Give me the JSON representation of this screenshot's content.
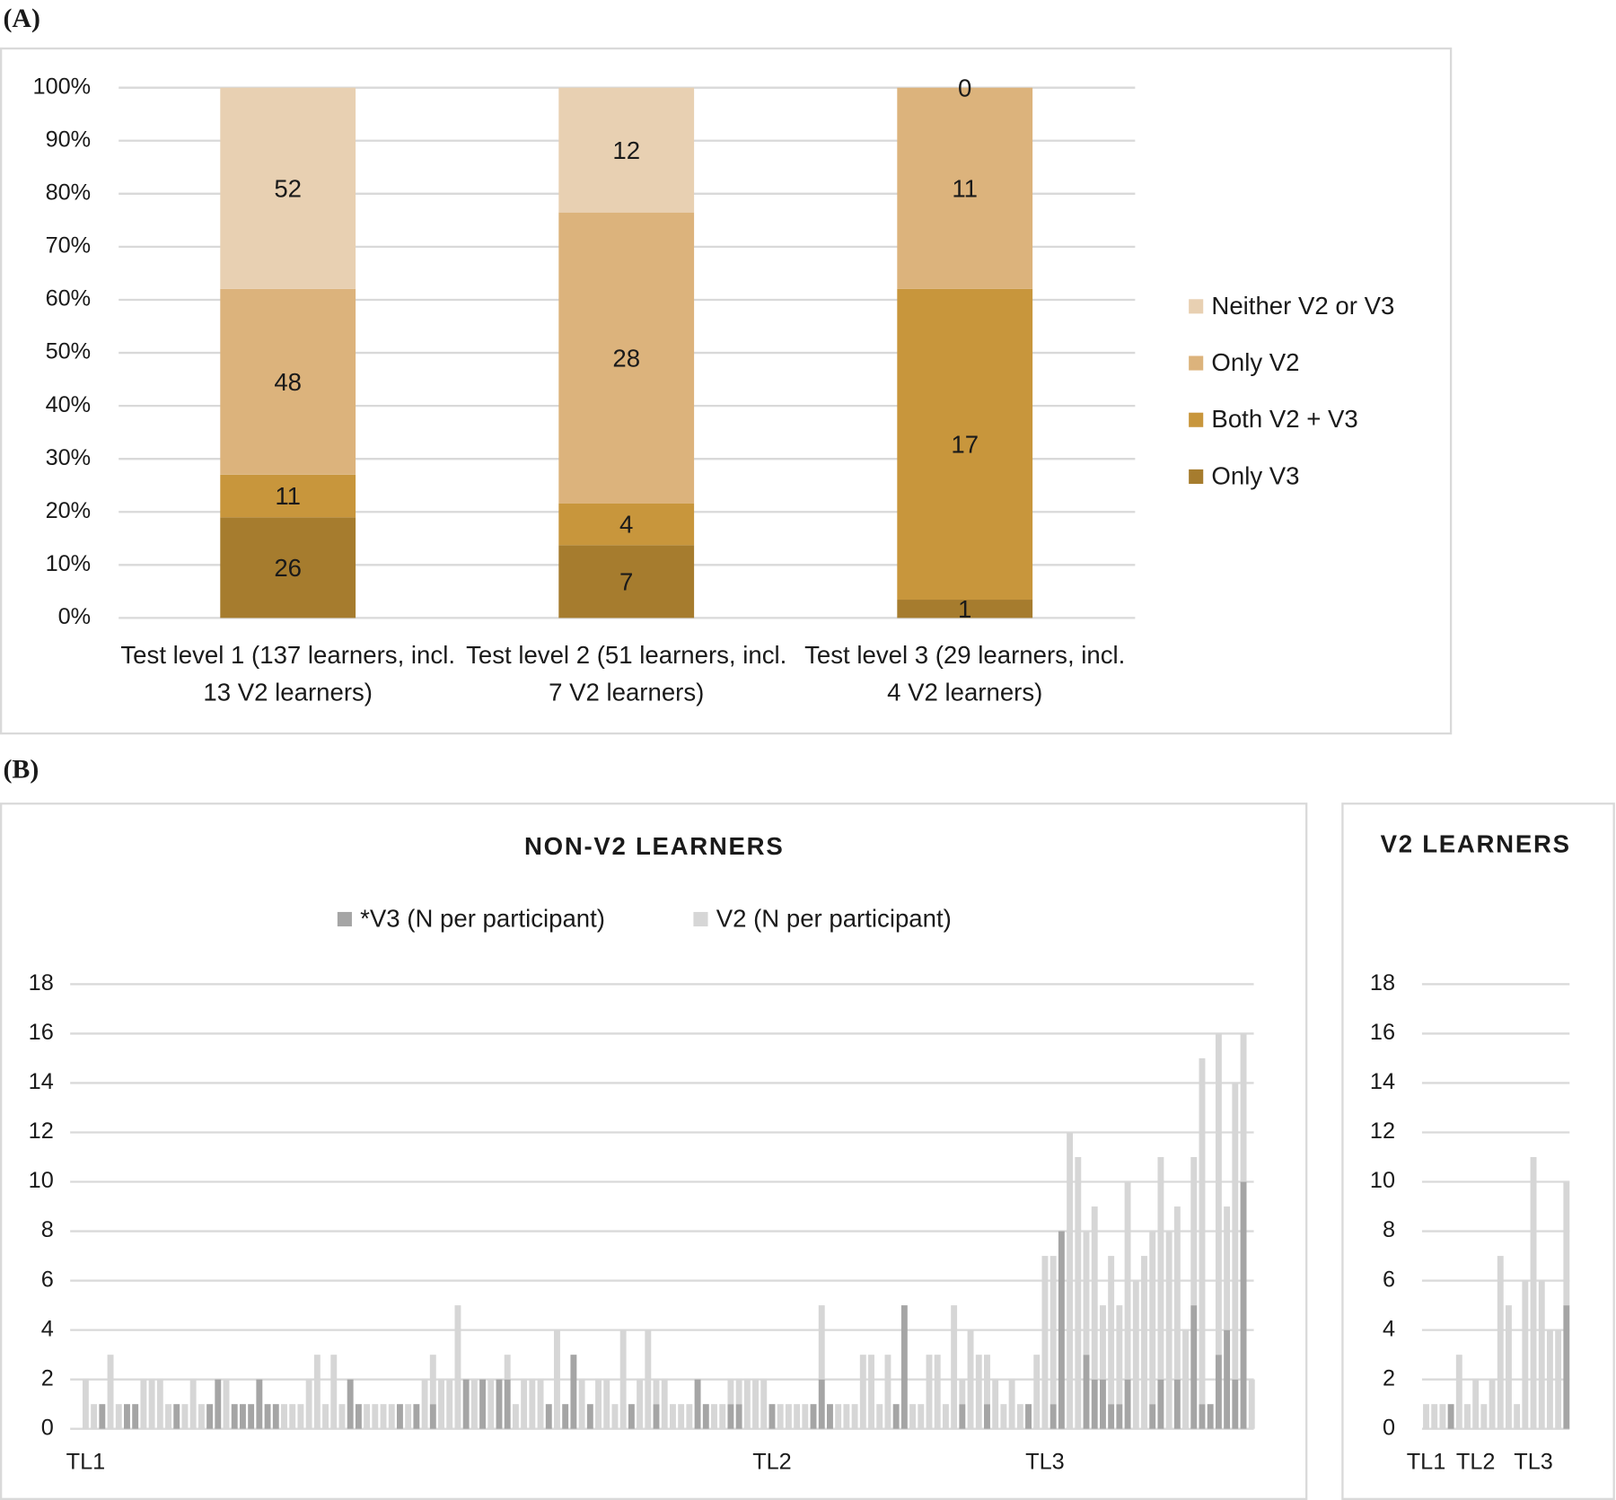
{
  "chart_data": [
    {
      "type": "bar",
      "panel_label": "(A)",
      "stacked": "percent",
      "data_labels": true,
      "grid": true,
      "legend": "right",
      "categories": [
        "Test level 1 (137 learners, incl. 13 V2 learners)",
        "Test level 2 (51 learners, incl. 7 V2 learners)",
        "Test level 3 (29 learners, incl. 4 V2 learners)"
      ],
      "series": [
        {
          "name": "Only V3",
          "color": "#a67c2e",
          "values": [
            26,
            7,
            1
          ]
        },
        {
          "name": "Both V2 + V3",
          "color": "#c8963c",
          "values": [
            11,
            4,
            17
          ]
        },
        {
          "name": "Only V2",
          "color": "#dcb37c",
          "values": [
            48,
            28,
            11
          ]
        },
        {
          "name": "Neither V2 or V3",
          "color": "#e8d0b2",
          "values": [
            52,
            12,
            0
          ]
        }
      ],
      "ylim": [
        0,
        100
      ],
      "yticks": [
        {
          "value": 0,
          "label": "0%"
        },
        {
          "value": 10,
          "label": "10%"
        },
        {
          "value": 20,
          "label": "20%"
        },
        {
          "value": 30,
          "label": "30%"
        },
        {
          "value": 40,
          "label": "40%"
        },
        {
          "value": 50,
          "label": "50%"
        },
        {
          "value": 60,
          "label": "60%"
        },
        {
          "value": 70,
          "label": "70%"
        },
        {
          "value": 80,
          "label": "80%"
        },
        {
          "value": 90,
          "label": "90%"
        },
        {
          "value": 100,
          "label": "100%"
        }
      ]
    },
    {
      "type": "bar",
      "panel_label": "(B)",
      "title": "NON-V2 LEARNERS",
      "stacked": true,
      "grid": true,
      "legend": "top",
      "categories": [
        "TL1",
        null,
        null,
        null,
        null,
        null,
        null,
        null,
        null,
        null,
        null,
        null,
        null,
        null,
        null,
        null,
        null,
        null,
        null,
        null,
        null,
        null,
        null,
        null,
        null,
        null,
        null,
        null,
        null,
        null,
        null,
        null,
        null,
        null,
        null,
        null,
        null,
        null,
        null,
        null,
        null,
        null,
        null,
        null,
        null,
        null,
        null,
        null,
        null,
        null,
        null,
        null,
        null,
        null,
        null,
        null,
        null,
        null,
        null,
        null,
        null,
        null,
        null,
        null,
        null,
        null,
        null,
        null,
        null,
        null,
        null,
        null,
        null,
        null,
        null,
        null,
        null,
        null,
        null,
        null,
        null,
        null,
        null,
        "TL2",
        null,
        null,
        null,
        null,
        null,
        null,
        null,
        null,
        null,
        null,
        null,
        null,
        null,
        null,
        null,
        null,
        null,
        null,
        null,
        null,
        null,
        null,
        null,
        null,
        null,
        null,
        null,
        null,
        null,
        null,
        null,
        null,
        "TL3",
        null,
        null,
        null,
        null,
        null,
        null,
        null,
        null,
        null,
        null,
        null,
        null,
        null,
        null,
        null,
        null,
        null,
        null,
        null,
        null,
        null,
        null,
        null,
        null,
        null
      ],
      "series": [
        {
          "name": "*V3 (N per participant)",
          "color": "#a5a5a5",
          "values": [
            0,
            0,
            1,
            0,
            0,
            1,
            1,
            0,
            0,
            0,
            0,
            1,
            0,
            0,
            0,
            1,
            2,
            0,
            1,
            1,
            1,
            2,
            1,
            1,
            0,
            0,
            0,
            0,
            0,
            0,
            0,
            0,
            2,
            1,
            0,
            0,
            0,
            0,
            1,
            0,
            1,
            0,
            1,
            0,
            0,
            0,
            2,
            0,
            2,
            0,
            2,
            2,
            0,
            0,
            0,
            0,
            1,
            0,
            1,
            3,
            0,
            1,
            0,
            0,
            0,
            0,
            1,
            0,
            0,
            1,
            0,
            0,
            0,
            0,
            2,
            1,
            0,
            0,
            1,
            1,
            0,
            0,
            0,
            1,
            0,
            0,
            0,
            0,
            1,
            2,
            1,
            0,
            0,
            0,
            0,
            0,
            0,
            0,
            1,
            5,
            0,
            0,
            0,
            0,
            0,
            0,
            1,
            0,
            0,
            1,
            0,
            0,
            0,
            0,
            1,
            0,
            0,
            1,
            8,
            0,
            0,
            3,
            2,
            2,
            1,
            1,
            2,
            0,
            0,
            1,
            2,
            0,
            2,
            0,
            5,
            1,
            1,
            3,
            4,
            2,
            10,
            0
          ]
        },
        {
          "name": "V2 (N per participant)",
          "color": "#d6d6d6",
          "values": [
            2,
            1,
            0,
            3,
            1,
            0,
            0,
            2,
            2,
            2,
            1,
            0,
            1,
            2,
            1,
            0,
            0,
            2,
            0,
            0,
            0,
            0,
            0,
            0,
            1,
            1,
            1,
            2,
            3,
            1,
            3,
            1,
            0,
            0,
            1,
            1,
            1,
            1,
            0,
            1,
            0,
            2,
            2,
            2,
            2,
            5,
            0,
            2,
            0,
            2,
            0,
            1,
            1,
            2,
            2,
            2,
            0,
            4,
            0,
            0,
            2,
            0,
            2,
            2,
            1,
            4,
            0,
            2,
            4,
            1,
            2,
            1,
            1,
            1,
            0,
            0,
            1,
            1,
            1,
            1,
            2,
            2,
            2,
            0,
            1,
            1,
            1,
            1,
            0,
            3,
            0,
            1,
            1,
            1,
            3,
            3,
            1,
            3,
            0,
            0,
            1,
            1,
            3,
            3,
            1,
            5,
            1,
            4,
            3,
            2,
            2,
            1,
            2,
            1,
            0,
            3,
            7,
            6,
            0,
            12,
            11,
            5,
            7,
            3,
            6,
            4,
            8,
            6,
            7,
            7,
            9,
            8,
            7,
            4,
            6,
            14,
            0,
            13,
            5,
            12,
            6,
            2
          ]
        }
      ],
      "ylim": [
        0,
        18
      ],
      "yticks": [
        0,
        2,
        4,
        6,
        8,
        10,
        12,
        14,
        16,
        18
      ]
    },
    {
      "type": "bar",
      "title": "V2 LEARNERS",
      "stacked": true,
      "grid": true,
      "categories": [
        "TL1",
        null,
        null,
        null,
        null,
        null,
        "TL2",
        null,
        null,
        null,
        null,
        null,
        null,
        "TL3",
        null,
        null,
        null,
        null
      ],
      "series": [
        {
          "color": "#a5a5a5",
          "values": [
            0,
            0,
            0,
            1,
            0,
            0,
            0,
            0,
            0,
            0,
            0,
            0,
            0,
            0,
            0,
            0,
            0,
            5
          ]
        },
        {
          "color": "#d6d6d6",
          "values": [
            1,
            1,
            1,
            0,
            3,
            1,
            2,
            1,
            2,
            7,
            5,
            1,
            6,
            11,
            6,
            4,
            4,
            5
          ]
        }
      ],
      "ylim": [
        0,
        18
      ],
      "yticks": [
        0,
        2,
        4,
        6,
        8,
        10,
        12,
        14,
        16,
        18
      ]
    }
  ]
}
